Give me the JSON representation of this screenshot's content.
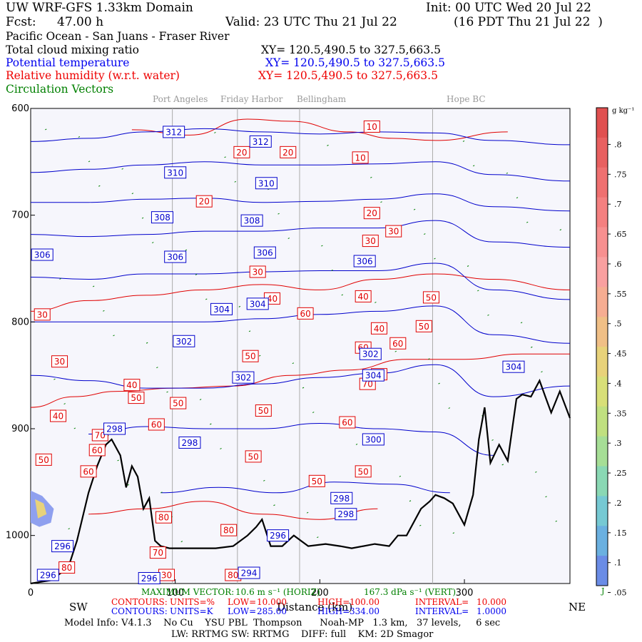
{
  "header": {
    "model": "UW WRF-GFS 1.33km Domain",
    "init": "Init: 00 UTC Wed 20 Jul 22",
    "fcst_label": "Fcst:",
    "fcst_value": "47.00 h",
    "valid": "Valid: 23 UTC Thu 21 Jul 22",
    "valid_local": "(16 PDT Thu 21 Jul 22  )",
    "region": "Pacific Ocean - San Juans - Fraser River"
  },
  "fields": [
    {
      "name": "Total cloud mixing ratio",
      "xy": "XY= 120.5,490.5 to 327.5,663.5",
      "color": "#000000"
    },
    {
      "name": "Potential temperature",
      "xy": "XY= 120.5,490.5 to 327.5,663.5",
      "color": "#0000ee"
    },
    {
      "name": "Relative humidity (w.r.t. water)",
      "xy": "XY= 120.5,490.5 to 327.5,663.5",
      "color": "#ee0000"
    },
    {
      "name": "Circulation Vectors",
      "xy": "",
      "color": "#008000"
    }
  ],
  "locations": [
    "Port Angeles",
    "Friday Harbor",
    "Bellingham",
    "Hope BC"
  ],
  "chart_data": {
    "type": "line",
    "xlabel": "Distance (km)",
    "x_ticks": [
      "0",
      "100",
      "200",
      "300"
    ],
    "xlim": [
      0,
      373
    ],
    "y_ticks": [
      "600",
      "700",
      "800",
      "900",
      "1000"
    ],
    "ylim": [
      600,
      1045
    ],
    "left_direction": "SW",
    "right_direction": "NE",
    "background": "#f6f6fc",
    "terrain_color": "#000000",
    "terrain": [
      [
        0,
        1045
      ],
      [
        14,
        1042
      ],
      [
        26,
        1030
      ],
      [
        32,
        1005
      ],
      [
        40,
        960
      ],
      [
        46,
        935
      ],
      [
        52,
        915
      ],
      [
        56,
        910
      ],
      [
        62,
        925
      ],
      [
        66,
        955
      ],
      [
        70,
        935
      ],
      [
        74,
        945
      ],
      [
        78,
        975
      ],
      [
        82,
        965
      ],
      [
        86,
        1005
      ],
      [
        90,
        1010
      ],
      [
        96,
        1012
      ],
      [
        108,
        1012
      ],
      [
        118,
        1012
      ],
      [
        128,
        1012
      ],
      [
        140,
        1010
      ],
      [
        150,
        1000
      ],
      [
        156,
        992
      ],
      [
        160,
        985
      ],
      [
        166,
        1010
      ],
      [
        174,
        1010
      ],
      [
        182,
        1000
      ],
      [
        192,
        1010
      ],
      [
        204,
        1008
      ],
      [
        214,
        1010
      ],
      [
        222,
        1012
      ],
      [
        238,
        1008
      ],
      [
        248,
        1010
      ],
      [
        254,
        1000
      ],
      [
        260,
        1000
      ],
      [
        270,
        975
      ],
      [
        276,
        968
      ],
      [
        280,
        962
      ],
      [
        286,
        965
      ],
      [
        292,
        970
      ],
      [
        300,
        990
      ],
      [
        306,
        962
      ],
      [
        310,
        910
      ],
      [
        314,
        880
      ],
      [
        318,
        932
      ],
      [
        324,
        915
      ],
      [
        330,
        930
      ],
      [
        336,
        872
      ],
      [
        340,
        868
      ],
      [
        346,
        870
      ],
      [
        352,
        855
      ],
      [
        356,
        870
      ],
      [
        360,
        885
      ],
      [
        366,
        865
      ],
      [
        373,
        890
      ]
    ],
    "theta_contours": [
      {
        "level": 312,
        "values": [
          [
            0,
            631
          ],
          [
            40,
            628
          ],
          [
            80,
            622
          ],
          [
            120,
            619
          ],
          [
            160,
            622
          ],
          [
            200,
            624
          ],
          [
            240,
            622
          ],
          [
            280,
            623
          ],
          [
            320,
            630
          ],
          [
            373,
            634
          ]
        ]
      },
      {
        "level": 310,
        "values": [
          [
            0,
            660
          ],
          [
            40,
            657
          ],
          [
            80,
            653
          ],
          [
            120,
            650
          ],
          [
            160,
            653
          ],
          [
            200,
            653
          ],
          [
            240,
            652
          ],
          [
            280,
            650
          ],
          [
            320,
            662
          ],
          [
            373,
            668
          ]
        ]
      },
      {
        "level": 308,
        "values": [
          [
            0,
            688
          ],
          [
            40,
            688
          ],
          [
            80,
            685
          ],
          [
            120,
            684
          ],
          [
            160,
            688
          ],
          [
            200,
            687
          ],
          [
            240,
            685
          ],
          [
            280,
            680
          ],
          [
            320,
            692
          ],
          [
            373,
            696
          ]
        ]
      },
      {
        "level": 306,
        "values": [
          [
            0,
            718
          ],
          [
            40,
            720
          ],
          [
            80,
            718
          ],
          [
            120,
            715
          ],
          [
            160,
            715
          ],
          [
            200,
            712
          ],
          [
            240,
            712
          ],
          [
            280,
            705
          ],
          [
            320,
            725
          ],
          [
            373,
            730
          ]
        ]
      },
      {
        "level": 304,
        "values": [
          [
            0,
            758
          ],
          [
            40,
            760
          ],
          [
            80,
            755
          ],
          [
            120,
            755
          ],
          [
            160,
            753
          ],
          [
            200,
            752
          ],
          [
            240,
            752
          ],
          [
            280,
            745
          ],
          [
            320,
            770
          ],
          [
            373,
            779
          ]
        ]
      },
      {
        "level": 302,
        "values": [
          [
            0,
            800
          ],
          [
            40,
            800
          ],
          [
            80,
            800
          ],
          [
            120,
            800
          ],
          [
            160,
            797
          ],
          [
            200,
            793
          ],
          [
            240,
            790
          ],
          [
            280,
            785
          ],
          [
            320,
            812
          ],
          [
            373,
            820
          ]
        ]
      },
      {
        "level": 300,
        "values": [
          [
            0,
            850
          ],
          [
            40,
            855
          ],
          [
            80,
            862
          ],
          [
            120,
            862
          ],
          [
            160,
            858
          ],
          [
            200,
            852
          ],
          [
            240,
            848
          ],
          [
            280,
            840
          ],
          [
            320,
            870
          ],
          [
            373,
            860
          ]
        ]
      },
      {
        "level": 298,
        "values": [
          [
            40,
            905
          ],
          [
            80,
            898
          ],
          [
            120,
            900
          ],
          [
            160,
            900
          ],
          [
            200,
            895
          ],
          [
            240,
            900
          ],
          [
            280,
            903
          ],
          [
            320,
            925
          ]
        ]
      },
      {
        "level": 296,
        "values": [
          [
            90,
            960
          ],
          [
            130,
            955
          ],
          [
            170,
            960
          ],
          [
            210,
            950
          ],
          [
            250,
            952
          ],
          [
            290,
            960
          ]
        ]
      }
    ],
    "theta_labels": [
      {
        "text": "312",
        "x": 99,
        "y": 622
      },
      {
        "text": "312",
        "x": 159,
        "y": 631
      },
      {
        "text": "310",
        "x": 100,
        "y": 660
      },
      {
        "text": "310",
        "x": 163,
        "y": 670
      },
      {
        "text": "308",
        "x": 91,
        "y": 702
      },
      {
        "text": "308",
        "x": 153,
        "y": 705
      },
      {
        "text": "306",
        "x": 8,
        "y": 737
      },
      {
        "text": "306",
        "x": 100,
        "y": 739
      },
      {
        "text": "306",
        "x": 162,
        "y": 735
      },
      {
        "text": "306",
        "x": 231,
        "y": 743
      },
      {
        "text": "304",
        "x": 132,
        "y": 788
      },
      {
        "text": "304",
        "x": 157,
        "y": 783
      },
      {
        "text": "304",
        "x": 334,
        "y": 842
      },
      {
        "text": "302",
        "x": 106,
        "y": 818
      },
      {
        "text": "302",
        "x": 147,
        "y": 852
      },
      {
        "text": "302",
        "x": 235,
        "y": 830
      },
      {
        "text": "304",
        "x": 237,
        "y": 850
      },
      {
        "text": "300",
        "x": 237,
        "y": 910
      },
      {
        "text": "298",
        "x": 58,
        "y": 900
      },
      {
        "text": "298",
        "x": 110,
        "y": 913
      },
      {
        "text": "298",
        "x": 215,
        "y": 965
      },
      {
        "text": "298",
        "x": 218,
        "y": 980
      },
      {
        "text": "296",
        "x": 171,
        "y": 1000
      },
      {
        "text": "296",
        "x": 22,
        "y": 1010
      },
      {
        "text": "296",
        "x": 82,
        "y": 1040
      },
      {
        "text": "294",
        "x": 151,
        "y": 1035
      },
      {
        "text": "296",
        "x": 12,
        "y": 1037
      }
    ],
    "rh_contours": [
      {
        "level": 20,
        "values": [
          [
            70,
            620
          ],
          [
            110,
            625
          ],
          [
            150,
            610
          ],
          [
            180,
            612
          ],
          [
            220,
            622
          ],
          [
            250,
            628
          ],
          [
            280,
            630
          ],
          [
            330,
            622
          ]
        ]
      },
      {
        "level": 30,
        "values": [
          [
            0,
            790
          ],
          [
            40,
            780
          ],
          [
            80,
            775
          ],
          [
            120,
            770
          ],
          [
            160,
            765
          ],
          [
            200,
            770
          ],
          [
            240,
            760
          ],
          [
            280,
            755
          ],
          [
            320,
            760
          ],
          [
            373,
            770
          ]
        ]
      },
      {
        "level": 50,
        "values": [
          [
            0,
            880
          ],
          [
            30,
            870
          ],
          [
            60,
            865
          ],
          [
            100,
            862
          ],
          [
            140,
            860
          ],
          [
            180,
            850
          ],
          [
            220,
            845
          ],
          [
            260,
            835
          ],
          [
            300,
            835
          ],
          [
            340,
            830
          ],
          [
            373,
            830
          ]
        ]
      },
      {
        "level": 70,
        "values": [
          [
            40,
            980
          ],
          [
            80,
            975
          ],
          [
            120,
            968
          ],
          [
            160,
            980
          ],
          [
            200,
            985
          ],
          [
            240,
            975
          ]
        ]
      }
    ],
    "rh_labels": [
      {
        "text": "10",
        "x": 236,
        "y": 617
      },
      {
        "text": "10",
        "x": 228,
        "y": 646
      },
      {
        "text": "20",
        "x": 146,
        "y": 641
      },
      {
        "text": "20",
        "x": 178,
        "y": 641
      },
      {
        "text": "20",
        "x": 120,
        "y": 687
      },
      {
        "text": "20",
        "x": 236,
        "y": 698
      },
      {
        "text": "30",
        "x": 235,
        "y": 724
      },
      {
        "text": "30",
        "x": 251,
        "y": 715
      },
      {
        "text": "30",
        "x": 157,
        "y": 753
      },
      {
        "text": "30",
        "x": 8,
        "y": 793
      },
      {
        "text": "30",
        "x": 20,
        "y": 837
      },
      {
        "text": "40",
        "x": 167,
        "y": 778
      },
      {
        "text": "40",
        "x": 230,
        "y": 776
      },
      {
        "text": "40",
        "x": 241,
        "y": 806
      },
      {
        "text": "40",
        "x": 70,
        "y": 859
      },
      {
        "text": "40",
        "x": 19,
        "y": 888
      },
      {
        "text": "60",
        "x": 190,
        "y": 792
      },
      {
        "text": "60",
        "x": 230,
        "y": 824
      },
      {
        "text": "60",
        "x": 219,
        "y": 894
      },
      {
        "text": "50",
        "x": 277,
        "y": 777
      },
      {
        "text": "50",
        "x": 272,
        "y": 804
      },
      {
        "text": "50",
        "x": 241,
        "y": 849
      },
      {
        "text": "50",
        "x": 152,
        "y": 832
      },
      {
        "text": "50",
        "x": 73,
        "y": 871
      },
      {
        "text": "50",
        "x": 102,
        "y": 876
      },
      {
        "text": "50",
        "x": 161,
        "y": 883
      },
      {
        "text": "50",
        "x": 9,
        "y": 929
      },
      {
        "text": "50",
        "x": 154,
        "y": 926
      },
      {
        "text": "50",
        "x": 198,
        "y": 949
      },
      {
        "text": "50",
        "x": 230,
        "y": 940
      },
      {
        "text": "60",
        "x": 87,
        "y": 896
      },
      {
        "text": "60",
        "x": 46,
        "y": 920
      },
      {
        "text": "60",
        "x": 40,
        "y": 940
      },
      {
        "text": "70",
        "x": 48,
        "y": 906
      },
      {
        "text": "70",
        "x": 88,
        "y": 1016
      },
      {
        "text": "80",
        "x": 92,
        "y": 983
      },
      {
        "text": "80",
        "x": 137,
        "y": 995
      },
      {
        "text": "80",
        "x": 140,
        "y": 1037
      },
      {
        "text": "80",
        "x": 25,
        "y": 1030
      },
      {
        "text": "30",
        "x": 94,
        "y": 1037
      },
      {
        "text": "70",
        "x": 233,
        "y": 858
      },
      {
        "text": "60",
        "x": 254,
        "y": 820
      }
    ]
  },
  "colorbar": {
    "unit": "g kg⁻¹",
    "labels": [
      ".8",
      ".75",
      ".7",
      ".65",
      ".6",
      ".55",
      ".5",
      ".45",
      ".4",
      ".35",
      ".3",
      ".25",
      ".2",
      ".15",
      ".1",
      ".05"
    ],
    "colors": [
      "#e05050",
      "#e86060",
      "#ef7070",
      "#f48080",
      "#f79090",
      "#f9a0a0",
      "#f6ad92",
      "#f0bf86",
      "#e8d27a",
      "#d8df78",
      "#c0e080",
      "#a6de96",
      "#8ad8b4",
      "#76c9d3",
      "#6ab0e0",
      "#6a8ce6"
    ],
    "bottom_mark": "J"
  },
  "footer": {
    "max_vector_label": "MAXIMUM VECTOR:",
    "max_vector_horiz": "10.6 m s⁻¹ (HORIZ)",
    "max_vector_vert": "167.3 dPa s⁻¹ (VERT)",
    "rh_contours": {
      "label": "CONTOURS:",
      "units": "UNITS=%",
      "low": "LOW=",
      "low_val": "10.000",
      "high": "HIGH=",
      "high_val": "100.00",
      "interval": "INTERVAL=",
      "interval_val": "10.000"
    },
    "theta_contours": {
      "label": "CONTOURS:",
      "units": "UNITS=K",
      "low": "LOW=",
      "low_val": "285.00",
      "high": "HIGH=",
      "high_val": "334.00",
      "interval": "INTERVAL=",
      "interval_val": "1.0000"
    },
    "model_info": "Model Info: V4.1.3    No Cu    YSU PBL  Thompson      Noah-MP   1.3 km,   37 levels,     6 sec",
    "model_info2": "LW: RRTMG SW: RRTMG    DIFF: full    KM: 2D Smagor"
  }
}
